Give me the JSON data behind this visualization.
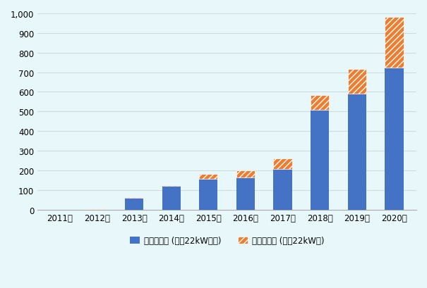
{
  "years": [
    "2011年",
    "2012年",
    "2013年",
    "2014年",
    "2015年",
    "2016年",
    "2017年",
    "2018年",
    "2019年",
    "2020年"
  ],
  "normal": [
    0,
    0,
    60,
    120,
    158,
    163,
    206,
    508,
    592,
    722
  ],
  "fast": [
    0,
    1,
    3,
    3,
    22,
    37,
    54,
    74,
    124,
    259
  ],
  "normal_color": "#4472C4",
  "fast_color": "#ED7D31",
  "fast_hatch_color": "#FFFFFF",
  "background_color": "#E8F8FA",
  "ylim": [
    0,
    1000
  ],
  "yticks": [
    0,
    100,
    200,
    300,
    400,
    500,
    600,
    700,
    800,
    900,
    1000
  ],
  "legend_normal": "普通充電器 (出力22kW以下)",
  "legend_fast": "急速充電器 (出力22kW超)",
  "bar_width": 0.5,
  "font_size_tick": 8.5,
  "font_size_legend": 8.5
}
